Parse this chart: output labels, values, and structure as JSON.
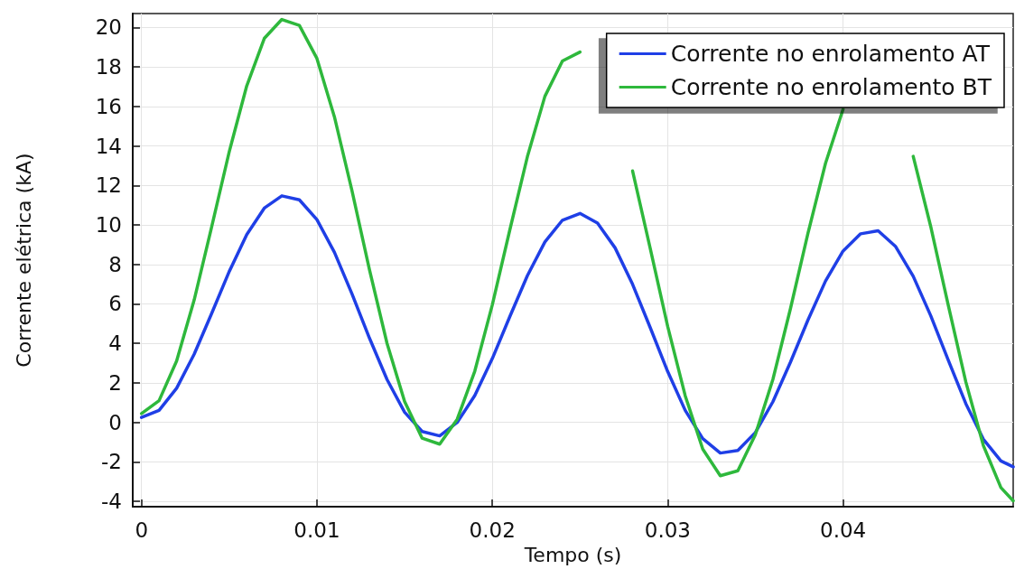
{
  "chart_data": {
    "type": "line",
    "xlabel": "Tempo (s)",
    "ylabel": "Corrente elétrica (kA)",
    "x": [
      0,
      0.001,
      0.002,
      0.003,
      0.004,
      0.005,
      0.006,
      0.007,
      0.008,
      0.009,
      0.01,
      0.011,
      0.012,
      0.013,
      0.014,
      0.015,
      0.016,
      0.017,
      0.018,
      0.019,
      0.02,
      0.021,
      0.022,
      0.023,
      0.024,
      0.025,
      0.026,
      0.027,
      0.028,
      0.029,
      0.03,
      0.031,
      0.032,
      0.033,
      0.034,
      0.035,
      0.036,
      0.037,
      0.038,
      0.039,
      0.04,
      0.041,
      0.042,
      0.043,
      0.044,
      0.045,
      0.046,
      0.047,
      0.048,
      0.049,
      0.0497
    ],
    "series": [
      {
        "name": "Corrente no enrolamento AT",
        "color": "#1f3fe6",
        "values": [
          0.25,
          0.61,
          1.73,
          3.45,
          5.52,
          7.64,
          9.51,
          10.85,
          11.47,
          11.27,
          10.27,
          8.61,
          6.51,
          4.26,
          2.17,
          0.52,
          -0.46,
          -0.68,
          0.0,
          1.36,
          3.23,
          5.36,
          7.43,
          9.14,
          10.24,
          10.58,
          10.09,
          8.84,
          6.99,
          4.81,
          2.58,
          0.61,
          -0.82,
          -1.55,
          -1.42,
          -0.51,
          1.05,
          3.05,
          5.19,
          7.16,
          8.68,
          9.55,
          9.7,
          8.9,
          7.4,
          5.4,
          3.15,
          0.95,
          -0.85,
          -1.95,
          -2.25
        ]
      },
      {
        "name": "Corrente no enrolamento BT",
        "color": "#2eb83c",
        "values": [
          0.45,
          1.1,
          3.11,
          6.19,
          9.9,
          13.7,
          17.04,
          19.44,
          20.4,
          20.1,
          18.43,
          15.47,
          11.73,
          7.72,
          4.0,
          1.06,
          -0.8,
          -1.1,
          0.16,
          2.59,
          5.95,
          9.75,
          13.45,
          16.51,
          18.3,
          18.75,
          null,
          null,
          12.73,
          8.83,
          4.86,
          1.35,
          -1.35,
          -2.7,
          -2.45,
          -0.62,
          2.18,
          5.76,
          9.58,
          13.12,
          15.85,
          null,
          null,
          null,
          13.47,
          9.91,
          5.92,
          2.05,
          -1.17,
          -3.3,
          -3.97
        ]
      }
    ],
    "xlim": [
      -0.0005,
      0.0497
    ],
    "xticks": [
      0,
      0.01,
      0.02,
      0.03,
      0.04
    ],
    "ylim": [
      -4.27,
      20.7
    ],
    "yticks": [
      -4,
      -2,
      0,
      2,
      4,
      6,
      8,
      10,
      12,
      14,
      16,
      18,
      20
    ],
    "grid": true,
    "legend": "top right",
    "marker": "none",
    "line_style": "solid"
  }
}
